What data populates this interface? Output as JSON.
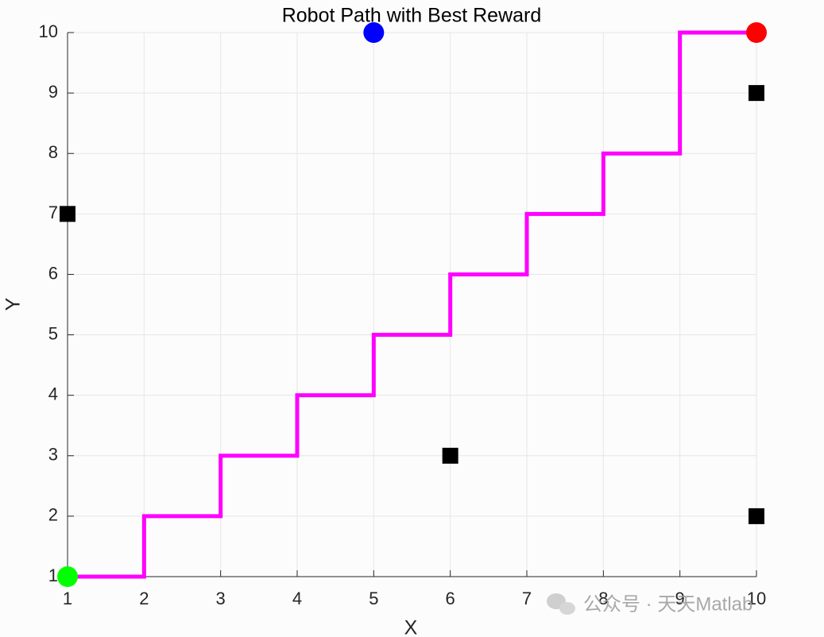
{
  "chart_data": {
    "type": "line",
    "title": "Robot Path with Best Reward",
    "xlabel": "X",
    "ylabel": "Y",
    "xlim": [
      1,
      10
    ],
    "ylim": [
      1,
      10
    ],
    "xticks": [
      1,
      2,
      3,
      4,
      5,
      6,
      7,
      8,
      9,
      10
    ],
    "yticks": [
      1,
      2,
      3,
      4,
      5,
      6,
      7,
      8,
      9,
      10
    ],
    "grid": true,
    "path": {
      "color": "#ff00ff",
      "x": [
        1,
        2,
        2,
        3,
        3,
        4,
        4,
        5,
        5,
        6,
        6,
        7,
        7,
        8,
        8,
        9,
        9,
        10
      ],
      "values": [
        1,
        1,
        2,
        2,
        3,
        3,
        4,
        4,
        5,
        5,
        6,
        6,
        7,
        7,
        8,
        8,
        10,
        10
      ]
    },
    "points": [
      {
        "color": "#000000",
        "marker": "square",
        "x": [
          1,
          6,
          10,
          10
        ],
        "values": [
          7,
          3,
          9,
          2
        ]
      },
      {
        "color": "#00ff00",
        "marker": "circle",
        "x": [
          1
        ],
        "values": [
          1
        ]
      },
      {
        "color": "#ff0000",
        "marker": "circle",
        "x": [
          10
        ],
        "values": [
          10
        ]
      },
      {
        "color": "#0000ff",
        "marker": "circle",
        "x": [
          5
        ],
        "values": [
          10
        ]
      }
    ]
  },
  "watermark": "公众号 · 天天Matlab"
}
